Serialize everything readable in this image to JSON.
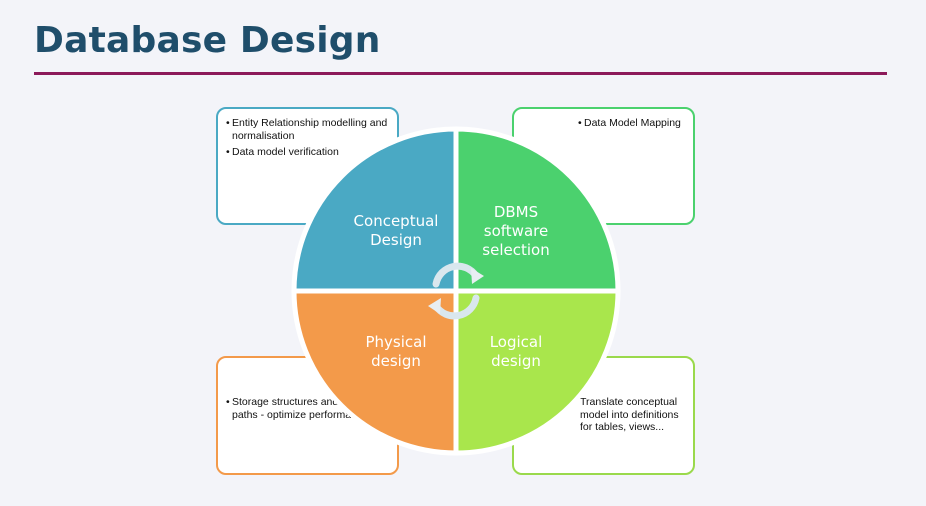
{
  "title": "Database Design",
  "colors": {
    "title": "#1f4e6b",
    "rule": "#8c1a5a",
    "conceptual": "#4aa9c4",
    "dbms": "#4bd16e",
    "physical": "#f39a4a",
    "logical": "#a9e64c"
  },
  "quadrants": {
    "conceptual": {
      "line1": "Conceptual",
      "line2": "Design"
    },
    "dbms": {
      "line1": "DBMS",
      "line2": "software",
      "line3": "selection"
    },
    "physical": {
      "line1": "Physical",
      "line2": "design"
    },
    "logical": {
      "line1": "Logical",
      "line2": "design"
    }
  },
  "cards": {
    "top_left": {
      "item1": "Entity Relationship modelling and normalisation",
      "item2": "Data model verification"
    },
    "top_right": {
      "item1": "Data Model Mapping"
    },
    "bottom_left": {
      "item1": "Storage structures and access paths - optimize performance"
    },
    "bottom_right": {
      "item1": "Translate conceptual model into definitions for tables, views..."
    }
  },
  "icons": [
    "cycle-arrows-icon"
  ]
}
